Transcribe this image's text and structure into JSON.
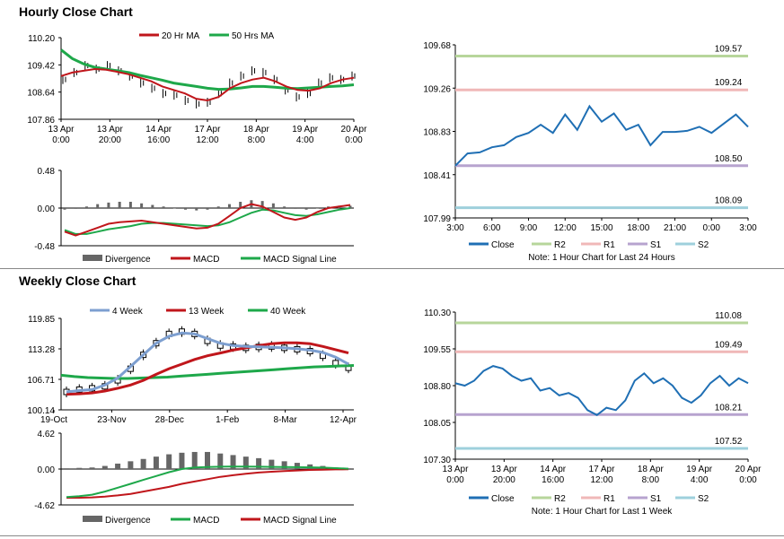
{
  "sections": {
    "hourly_title": "Hourly Close Chart",
    "weekly_title": "Weekly Close Chart"
  },
  "colors": {
    "ma20": "#c0161b",
    "ma50": "#1ea84a",
    "close": "#1f6fb4",
    "r2": "#b7d69b",
    "r1": "#f0b8b8",
    "s1": "#b7a3cf",
    "s2": "#9ed0dc",
    "wk4": "#7d9fd0",
    "wk13": "#c0161b",
    "wk40": "#1ea84a",
    "divergence": "#666666",
    "macd_red": "#c0161b",
    "macd_green": "#1ea84a"
  },
  "chart_data": [
    {
      "id": "hourly-price",
      "type": "line",
      "xticks": [
        "13 Apr\n0:00",
        "13 Apr\n20:00",
        "14 Apr\n16:00",
        "17 Apr\n12:00",
        "18 Apr\n8:00",
        "19 Apr\n4:00",
        "20 Apr\n0:00"
      ],
      "yticks": [
        "110.20",
        "109.42",
        "108.64",
        "107.86"
      ],
      "ylim": [
        107.86,
        110.2
      ],
      "legend": [
        "20 Hr MA",
        "50 Hrs MA"
      ],
      "series": [
        {
          "name": "20 Hr MA",
          "values": [
            109.1,
            109.2,
            109.25,
            109.3,
            109.28,
            109.22,
            109.15,
            109.05,
            108.95,
            108.8,
            108.7,
            108.6,
            108.45,
            108.4,
            108.5,
            108.75,
            108.9,
            109.0,
            109.05,
            108.95,
            108.8,
            108.7,
            108.68,
            108.75,
            108.9,
            109.0,
            109.05
          ]
        },
        {
          "name": "50 Hrs MA",
          "values": [
            109.85,
            109.6,
            109.45,
            109.35,
            109.3,
            109.25,
            109.2,
            109.12,
            109.05,
            108.98,
            108.9,
            108.85,
            108.8,
            108.75,
            108.72,
            108.73,
            108.76,
            108.8,
            108.8,
            108.78,
            108.75,
            108.74,
            108.76,
            108.78,
            108.8,
            108.82,
            108.85
          ]
        },
        {
          "name": "Close",
          "values": [
            109.0,
            109.2,
            109.4,
            109.3,
            109.4,
            109.25,
            109.1,
            108.9,
            108.75,
            108.6,
            108.55,
            108.4,
            108.3,
            108.35,
            108.6,
            108.9,
            109.1,
            109.25,
            109.2,
            109.0,
            108.7,
            108.5,
            108.6,
            108.9,
            109.05,
            109.0,
            109.1
          ]
        }
      ]
    },
    {
      "id": "hourly-macd",
      "type": "line",
      "yticks": [
        "0.48",
        "0.00",
        "-0.48"
      ],
      "ylim": [
        -0.48,
        0.48
      ],
      "legend": [
        "Divergence",
        "MACD",
        "MACD Signal Line"
      ],
      "series": [
        {
          "name": "Divergence",
          "values": [
            -0.02,
            -0.01,
            0.02,
            0.05,
            0.07,
            0.08,
            0.08,
            0.06,
            0.04,
            0.02,
            0.0,
            -0.02,
            -0.03,
            -0.02,
            0.02,
            0.05,
            0.08,
            0.1,
            0.09,
            0.06,
            0.02,
            -0.01,
            -0.02,
            0.0,
            0.02,
            0.03,
            0.03
          ]
        },
        {
          "name": "MACD",
          "values": [
            -0.3,
            -0.35,
            -0.3,
            -0.25,
            -0.2,
            -0.18,
            -0.17,
            -0.16,
            -0.18,
            -0.2,
            -0.22,
            -0.24,
            -0.26,
            -0.25,
            -0.2,
            -0.1,
            0.0,
            0.05,
            0.02,
            -0.05,
            -0.12,
            -0.15,
            -0.12,
            -0.05,
            0.0,
            0.02,
            0.04
          ]
        },
        {
          "name": "MACD Signal Line",
          "values": [
            -0.28,
            -0.33,
            -0.33,
            -0.3,
            -0.27,
            -0.25,
            -0.23,
            -0.2,
            -0.19,
            -0.19,
            -0.2,
            -0.21,
            -0.22,
            -0.23,
            -0.22,
            -0.18,
            -0.12,
            -0.06,
            -0.02,
            -0.03,
            -0.06,
            -0.09,
            -0.1,
            -0.08,
            -0.05,
            -0.02,
            0.0
          ]
        }
      ]
    },
    {
      "id": "hourly-pivots",
      "type": "line",
      "xticks": [
        "3:00",
        "6:00",
        "9:00",
        "12:00",
        "15:00",
        "18:00",
        "21:00",
        "0:00",
        "3:00"
      ],
      "yticks": [
        "109.68",
        "109.26",
        "108.83",
        "108.41",
        "107.99"
      ],
      "ylim": [
        107.99,
        109.68
      ],
      "levels": {
        "R2": "109.57",
        "R1": "109.24",
        "S1": "108.50",
        "S2": "108.09"
      },
      "legend": [
        "Close",
        "R2",
        "R1",
        "S1",
        "S2"
      ],
      "note": "Note: 1 Hour Chart for Last 24 Hours",
      "series": [
        {
          "name": "Close",
          "values": [
            108.5,
            108.62,
            108.63,
            108.68,
            108.7,
            108.78,
            108.82,
            108.9,
            108.82,
            109.0,
            108.85,
            109.08,
            108.93,
            109.01,
            108.85,
            108.9,
            108.7,
            108.83,
            108.83,
            108.84,
            108.88,
            108.82,
            108.91,
            109.0,
            108.88
          ]
        }
      ]
    },
    {
      "id": "weekly-price",
      "type": "line",
      "xticks": [
        "19-Oct",
        "23-Nov",
        "28-Dec",
        "1-Feb",
        "8-Mar",
        "12-Apr"
      ],
      "yticks": [
        "119.85",
        "113.28",
        "106.71",
        "100.14"
      ],
      "ylim": [
        100.14,
        119.85
      ],
      "legend": [
        "4 Week",
        "13 Week",
        "40 Week"
      ],
      "series": [
        {
          "name": "4 Week",
          "values": [
            104,
            104.3,
            104.5,
            105.5,
            107,
            109.5,
            112,
            114.5,
            116,
            116.7,
            116.5,
            115.5,
            114.5,
            114,
            113.8,
            113.7,
            113.6,
            113.5,
            113.3,
            113,
            112.5,
            111.5,
            110
          ]
        },
        {
          "name": "13 Week",
          "values": [
            103.5,
            103.6,
            103.8,
            104.2,
            104.8,
            105.5,
            106.5,
            107.8,
            109,
            110,
            111,
            111.8,
            112.4,
            113,
            113.5,
            114,
            114.4,
            114.6,
            114.6,
            114.4,
            113.8,
            113.1,
            112.4
          ]
        },
        {
          "name": "40 Week",
          "values": [
            107.6,
            107.3,
            107.1,
            107.0,
            106.9,
            106.9,
            107.0,
            107.1,
            107.2,
            107.4,
            107.6,
            107.8,
            108.0,
            108.2,
            108.4,
            108.6,
            108.8,
            109.0,
            109.2,
            109.4,
            109.5,
            109.6,
            109.7
          ]
        },
        {
          "name": "Close",
          "values": [
            104,
            104.5,
            104.8,
            105.2,
            106.5,
            109,
            112,
            114.5,
            116.5,
            117,
            116.5,
            115,
            114,
            113.8,
            113.5,
            113.7,
            113.8,
            113.5,
            113.2,
            112.8,
            111.8,
            110.2,
            109.2
          ]
        }
      ]
    },
    {
      "id": "weekly-macd",
      "type": "line",
      "yticks": [
        "4.62",
        "0.00",
        "-4.62"
      ],
      "ylim": [
        -4.62,
        4.62
      ],
      "legend": [
        "Divergence",
        "MACD",
        "MACD Signal Line"
      ],
      "series": [
        {
          "name": "Divergence",
          "values": [
            0.1,
            0.15,
            0.2,
            0.4,
            0.7,
            1.0,
            1.3,
            1.6,
            1.9,
            2.1,
            2.2,
            2.2,
            2.0,
            1.8,
            1.6,
            1.4,
            1.2,
            1.0,
            0.8,
            0.6,
            0.4,
            0.2,
            0.1
          ]
        },
        {
          "name": "MACD",
          "values": [
            -3.6,
            -3.5,
            -3.3,
            -2.9,
            -2.4,
            -1.9,
            -1.4,
            -0.9,
            -0.4,
            0.0,
            0.2,
            0.25,
            0.3,
            0.32,
            0.32,
            0.3,
            0.28,
            0.26,
            0.24,
            0.22,
            0.18,
            0.12,
            0.05
          ]
        },
        {
          "name": "MACD Signal Line",
          "values": [
            -3.7,
            -3.7,
            -3.65,
            -3.55,
            -3.4,
            -3.2,
            -2.9,
            -2.6,
            -2.3,
            -1.9,
            -1.6,
            -1.3,
            -1.0,
            -0.8,
            -0.6,
            -0.45,
            -0.35,
            -0.25,
            -0.18,
            -0.12,
            -0.08,
            -0.05,
            -0.03
          ]
        }
      ]
    },
    {
      "id": "weekly-pivots",
      "type": "line",
      "xticks": [
        "13 Apr\n0:00",
        "13 Apr\n20:00",
        "14 Apr\n16:00",
        "17 Apr\n12:00",
        "18 Apr\n8:00",
        "19 Apr\n4:00",
        "20 Apr\n0:00"
      ],
      "yticks": [
        "110.30",
        "109.55",
        "108.80",
        "108.05",
        "107.30"
      ],
      "ylim": [
        107.3,
        110.3
      ],
      "levels": {
        "R2": "110.08",
        "R1": "109.49",
        "S1": "108.21",
        "S2": "107.52"
      },
      "legend": [
        "Close",
        "R2",
        "R1",
        "S1",
        "S2"
      ],
      "note": "Note: 1 Hour Chart for Last 1 Week",
      "series": [
        {
          "name": "Close",
          "values": [
            108.85,
            108.8,
            108.9,
            109.1,
            109.2,
            109.15,
            109.0,
            108.9,
            108.95,
            108.7,
            108.75,
            108.6,
            108.65,
            108.55,
            108.3,
            108.2,
            108.35,
            108.3,
            108.5,
            108.9,
            109.05,
            108.85,
            108.95,
            108.8,
            108.55,
            108.45,
            108.6,
            108.85,
            109.0,
            108.8,
            108.95,
            108.85
          ]
        }
      ]
    }
  ]
}
